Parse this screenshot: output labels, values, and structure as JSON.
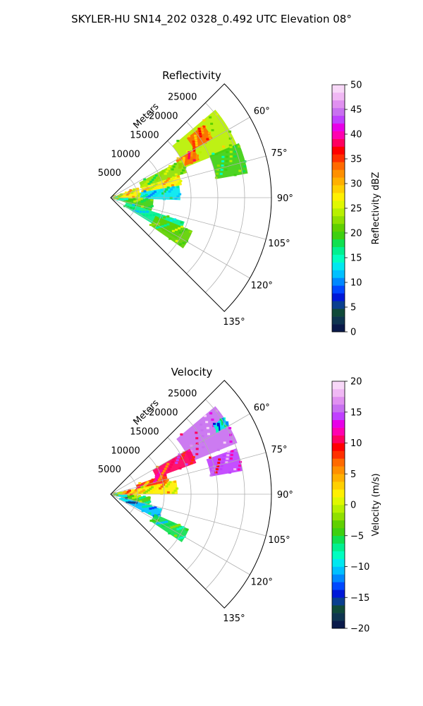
{
  "figure": {
    "suptitle": "SKYLER-HU  SN14_202  0328_0.492 UTC Elevation 08°"
  },
  "chart_data": [
    {
      "type": "heatmap",
      "title": "Reflectivity",
      "radial_label": "Meters",
      "radial_ticks": [
        5000,
        10000,
        15000,
        20000,
        25000
      ],
      "radial_tick_labels": [
        "5000",
        "10000",
        "15000",
        "20000",
        "25000"
      ],
      "theta_ticks": [
        60,
        75,
        90,
        105,
        120,
        135
      ],
      "theta_tick_labels": [
        "60°",
        "75°",
        "90°",
        "105°",
        "120°",
        "135°"
      ],
      "theta_range": [
        45,
        135
      ],
      "r_range": [
        0,
        30000
      ],
      "grid": true,
      "colorbar": {
        "label": "Reflectivity dBZ",
        "range": [
          0,
          50
        ],
        "ticks": [
          0,
          5,
          10,
          15,
          20,
          25,
          30,
          35,
          40,
          45,
          50
        ],
        "tick_labels": [
          "0",
          "5",
          "10",
          "15",
          "20",
          "25",
          "30",
          "35",
          "40",
          "45",
          "50"
        ],
        "colors": [
          "#0a1a4a",
          "#0f3550",
          "#104a3a",
          "#0a3f8f",
          "#0018d8",
          "#0048ff",
          "#0088ff",
          "#00c0ff",
          "#00e8f0",
          "#00ffc0",
          "#00f090",
          "#10e050",
          "#3ed010",
          "#60d000",
          "#90e000",
          "#b8f000",
          "#e0f800",
          "#fff000",
          "#ffd000",
          "#ffb000",
          "#ff9000",
          "#ff6a00",
          "#ff3000",
          "#ff0000",
          "#ff0060",
          "#ff00b0",
          "#e800e8",
          "#c040ff",
          "#c870f0",
          "#e090f0",
          "#f0b8f4",
          "#f8d8f8"
        ]
      },
      "echo_regions": [
        {
          "az_start": 50,
          "az_end": 68,
          "r_start": 15000,
          "r_end": 25500,
          "value": 24
        },
        {
          "az_start": 52,
          "az_end": 60,
          "r_start": 18000,
          "r_end": 22000,
          "value": 33
        },
        {
          "az_start": 60,
          "az_end": 67,
          "r_start": 14000,
          "r_end": 18000,
          "value": 34
        },
        {
          "az_start": 67,
          "az_end": 80,
          "r_start": 20000,
          "r_end": 26000,
          "value": 20
        },
        {
          "az_start": 62,
          "az_end": 72,
          "r_start": 6000,
          "r_end": 15000,
          "value": 22
        },
        {
          "az_start": 72,
          "az_end": 80,
          "r_start": 6000,
          "r_end": 13500,
          "value": 28
        },
        {
          "az_start": 80,
          "az_end": 92,
          "r_start": 5500,
          "r_end": 13000,
          "value": 14
        },
        {
          "az_start": 70,
          "az_end": 92,
          "r_start": 0,
          "r_end": 5500,
          "value": 27
        },
        {
          "az_start": 92,
          "az_end": 108,
          "r_start": 0,
          "r_end": 8000,
          "value": 20
        },
        {
          "az_start": 108,
          "az_end": 122,
          "r_start": 3000,
          "r_end": 14500,
          "value": 16
        },
        {
          "az_start": 112,
          "az_end": 125,
          "r_start": 9000,
          "r_end": 16500,
          "value": 21
        }
      ]
    },
    {
      "type": "heatmap",
      "title": "Velocity",
      "radial_label": "Meters",
      "radial_ticks": [
        5000,
        10000,
        15000,
        20000,
        25000
      ],
      "radial_tick_labels": [
        "5000",
        "10000",
        "15000",
        "20000",
        "25000"
      ],
      "theta_ticks": [
        60,
        75,
        90,
        105,
        120,
        135
      ],
      "theta_tick_labels": [
        "60°",
        "75°",
        "90°",
        "105°",
        "120°",
        "135°"
      ],
      "theta_range": [
        45,
        135
      ],
      "r_range": [
        0,
        30000
      ],
      "grid": true,
      "colorbar": {
        "label": "Velocity (m/s)",
        "range": [
          -20,
          20
        ],
        "ticks": [
          -20,
          -15,
          -10,
          -5,
          0,
          5,
          10,
          15,
          20
        ],
        "tick_labels": [
          "−20",
          "−15",
          "−10",
          "−5",
          "0",
          "5",
          "10",
          "15",
          "20"
        ],
        "colors": [
          "#0a1a4a",
          "#0f3550",
          "#104a3a",
          "#0a3f8f",
          "#0018d8",
          "#0048ff",
          "#0088ff",
          "#00c0ff",
          "#00e8f0",
          "#00ffc0",
          "#00f090",
          "#10e050",
          "#3ed010",
          "#60d000",
          "#90e000",
          "#b8f000",
          "#e0f800",
          "#fff000",
          "#ffd000",
          "#ffb000",
          "#ff9000",
          "#ff6a00",
          "#ff3000",
          "#ff0000",
          "#ff0060",
          "#ff00b0",
          "#e800e8",
          "#c040ff",
          "#c870f0",
          "#e090f0",
          "#f0b8f4",
          "#f8d8f8"
        ]
      },
      "echo_regions": [
        {
          "az_start": 50,
          "az_end": 68,
          "r_start": 16000,
          "r_end": 25500,
          "value": 15
        },
        {
          "az_start": 56,
          "az_end": 60,
          "r_start": 23000,
          "r_end": 25500,
          "value": -10
        },
        {
          "az_start": 60,
          "az_end": 70,
          "r_start": 9000,
          "r_end": 17000,
          "value": 10
        },
        {
          "az_start": 70,
          "az_end": 80,
          "r_start": 19000,
          "r_end": 25000,
          "value": 14
        },
        {
          "az_start": 70,
          "az_end": 80,
          "r_start": 5000,
          "r_end": 11000,
          "value": 8
        },
        {
          "az_start": 78,
          "az_end": 90,
          "r_start": 5000,
          "r_end": 12500,
          "value": 2
        },
        {
          "az_start": 80,
          "az_end": 94,
          "r_start": 0,
          "r_end": 5000,
          "value": 4
        },
        {
          "az_start": 94,
          "az_end": 106,
          "r_start": 0,
          "r_end": 7500,
          "value": -5
        },
        {
          "az_start": 106,
          "az_end": 118,
          "r_start": 2000,
          "r_end": 10000,
          "value": -11
        },
        {
          "az_start": 114,
          "az_end": 124,
          "r_start": 9000,
          "r_end": 16000,
          "value": -6
        }
      ]
    }
  ]
}
